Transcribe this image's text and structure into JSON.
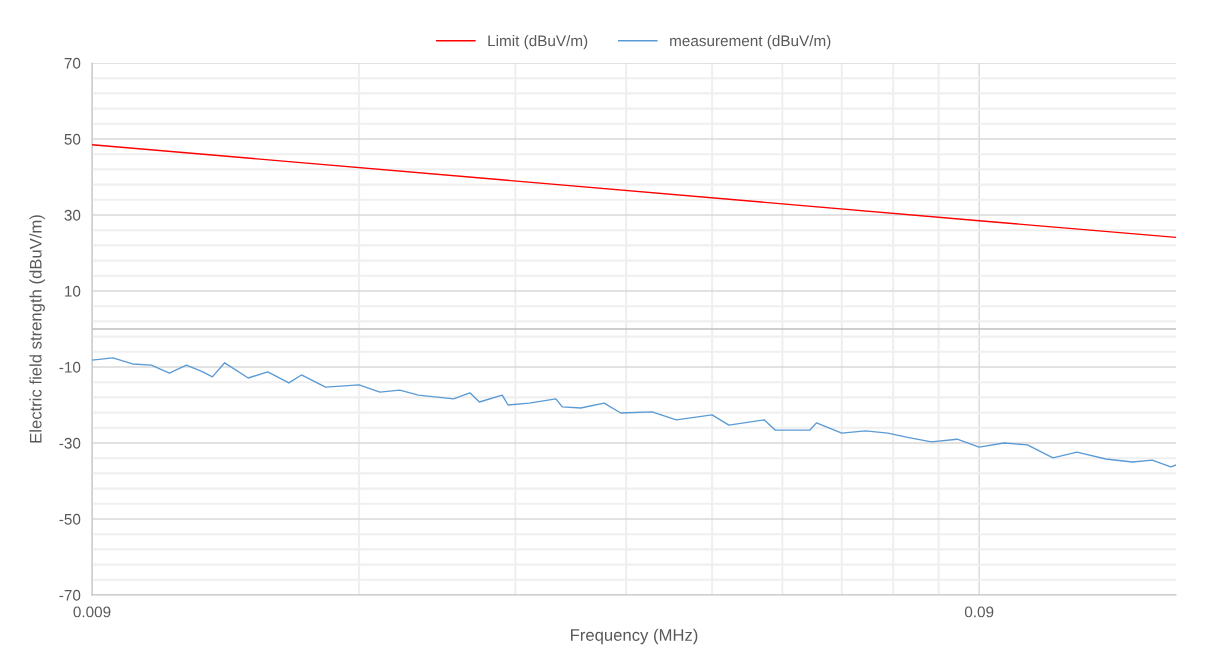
{
  "chart_data": {
    "type": "line",
    "xlabel": "Frequency (MHz)",
    "ylabel": "Electric field strength (dBuV/m)",
    "log": "x",
    "grid": true,
    "legend": "top",
    "line_style": "solid",
    "marker": "none",
    "xlim": [
      0.009,
      0.15
    ],
    "xticks": [
      0.009,
      {
        "value": 0.018,
        "label": null
      },
      {
        "value": 0.027,
        "label": null
      },
      {
        "value": 0.036,
        "label": null
      },
      {
        "value": 0.045,
        "label": null
      },
      {
        "value": 0.054,
        "label": null
      },
      {
        "value": 0.063,
        "label": null
      },
      {
        "value": 0.072,
        "label": null
      },
      {
        "value": 0.081,
        "label": null
      },
      0.09
    ],
    "ylim": [
      -70,
      70
    ],
    "yticks": [
      -70,
      {
        "value": -66,
        "label": null
      },
      {
        "value": -62,
        "label": null
      },
      {
        "value": -58,
        "label": null
      },
      {
        "value": -54,
        "label": null
      },
      -50,
      {
        "value": -46,
        "label": null
      },
      {
        "value": -42,
        "label": null
      },
      {
        "value": -38,
        "label": null
      },
      {
        "value": -34,
        "label": null
      },
      -30,
      {
        "value": -26,
        "label": null
      },
      {
        "value": -22,
        "label": null
      },
      {
        "value": -18,
        "label": null
      },
      {
        "value": -14,
        "label": null
      },
      -10,
      {
        "value": -6,
        "label": null
      },
      {
        "value": -2,
        "label": null
      },
      {
        "value": 2,
        "label": null
      },
      {
        "value": 6,
        "label": null
      },
      10,
      {
        "value": 14,
        "label": null
      },
      {
        "value": 18,
        "label": null
      },
      {
        "value": 22,
        "label": null
      },
      {
        "value": 26,
        "label": null
      },
      30,
      {
        "value": 34,
        "label": null
      },
      {
        "value": 38,
        "label": null
      },
      {
        "value": 42,
        "label": null
      },
      {
        "value": 46,
        "label": null
      },
      50,
      {
        "value": 54,
        "label": null
      },
      {
        "value": 58,
        "label": null
      },
      {
        "value": 62,
        "label": null
      },
      {
        "value": 66,
        "label": null
      },
      70
    ],
    "ref_lines": [
      {
        "axis": "y",
        "value": 0,
        "color": "#bfbfbf"
      }
    ],
    "series": [
      {
        "name": "Limit (dBuV/m)",
        "color": "#ff0000",
        "x": [
          0.009,
          0.09,
          0.15
        ],
        "values": [
          48.5,
          28.5,
          24.1
        ]
      },
      {
        "name": "measurement (dBuV/m)",
        "color": "#5b9bd5",
        "x": [
          0.009,
          0.0095,
          0.01,
          0.0105,
          0.011,
          0.0115,
          0.012,
          0.0123,
          0.0127,
          0.0135,
          0.0142,
          0.015,
          0.0155,
          0.0165,
          0.018,
          0.019,
          0.02,
          0.021,
          0.023,
          0.024,
          0.0246,
          0.0261,
          0.0265,
          0.028,
          0.03,
          0.0305,
          0.032,
          0.034,
          0.0355,
          0.0385,
          0.041,
          0.045,
          0.047,
          0.0515,
          0.053,
          0.058,
          0.059,
          0.063,
          0.067,
          0.071,
          0.075,
          0.0795,
          0.085,
          0.09,
          0.096,
          0.102,
          0.109,
          0.116,
          0.125,
          0.134,
          0.141,
          0.148,
          0.15
        ],
        "values": [
          -8.2,
          -7.6,
          -9.2,
          -9.5,
          -11.6,
          -9.5,
          -11.3,
          -12.6,
          -8.9,
          -12.9,
          -11.3,
          -14.2,
          -12.1,
          -15.3,
          -14.7,
          -16.6,
          -16.1,
          -17.4,
          -18.4,
          -16.8,
          -19.2,
          -17.4,
          -20.0,
          -19.5,
          -18.4,
          -20.5,
          -20.8,
          -19.5,
          -22.1,
          -21.8,
          -23.9,
          -22.6,
          -25.3,
          -23.9,
          -26.6,
          -26.6,
          -24.7,
          -27.4,
          -26.8,
          -27.4,
          -28.6,
          -29.7,
          -29.0,
          -31.1,
          -30.0,
          -30.5,
          -33.9,
          -32.4,
          -34.2,
          -35.0,
          -34.5,
          -36.3,
          -35.8
        ]
      }
    ]
  }
}
